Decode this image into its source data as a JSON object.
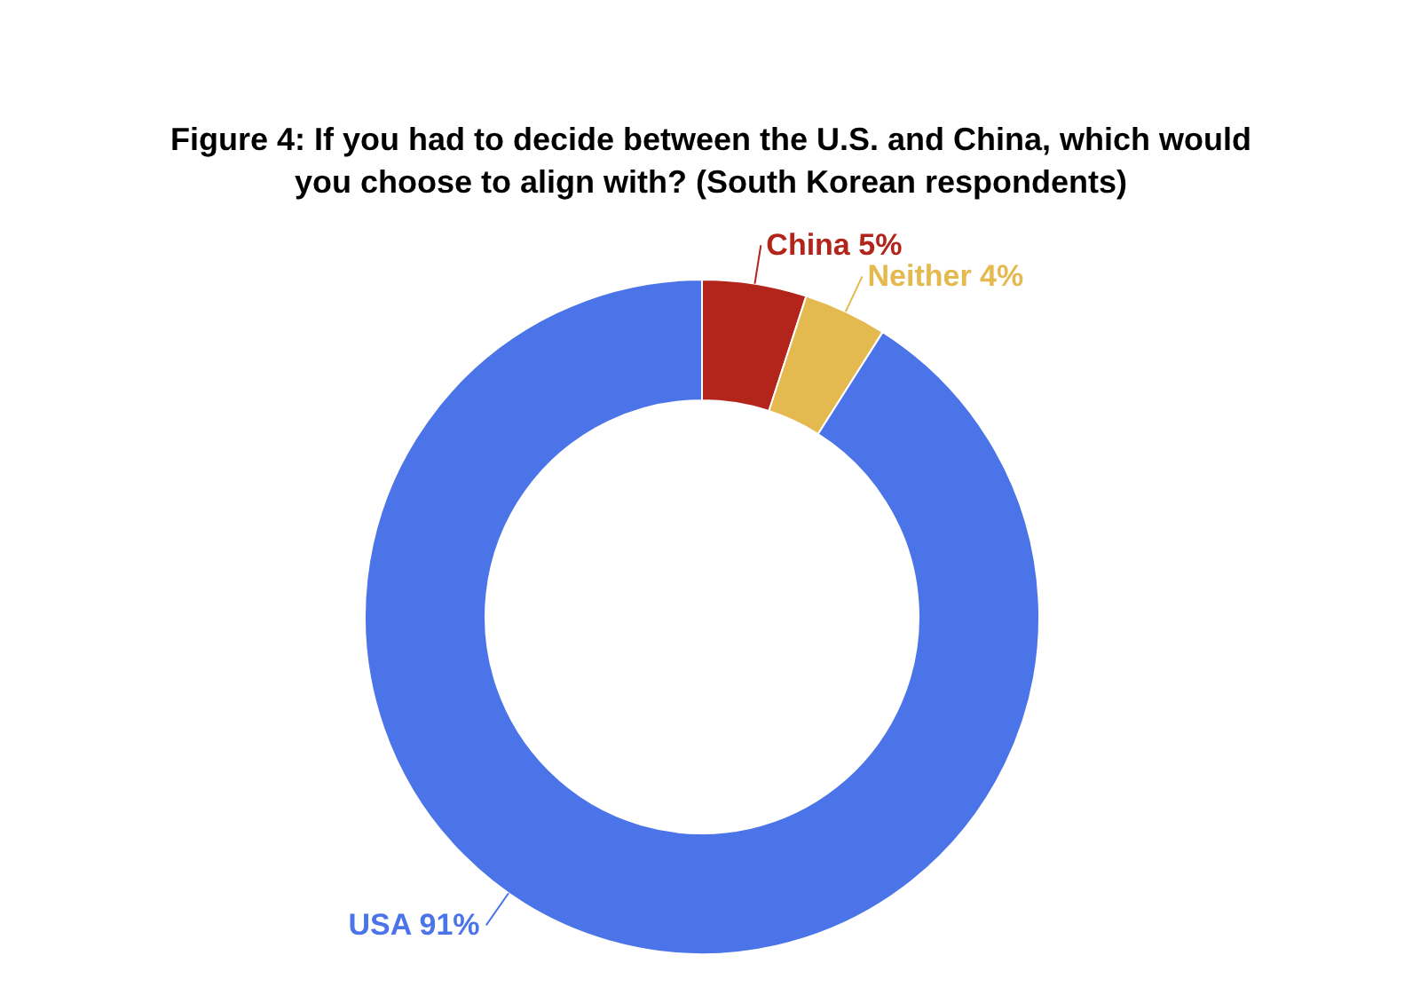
{
  "chart_data": {
    "type": "donut",
    "title": "Figure 4: If you had to decide between the U.S. and China, which would you choose to align with? (South Korean respondents)",
    "categories": [
      "China",
      "Neither",
      "USA"
    ],
    "values": [
      5,
      4,
      91
    ],
    "value_labels": [
      "5%",
      "4%",
      "91%"
    ],
    "colors": [
      "#b3241a",
      "#e4b94f",
      "#4b74e8"
    ],
    "legend": false
  }
}
